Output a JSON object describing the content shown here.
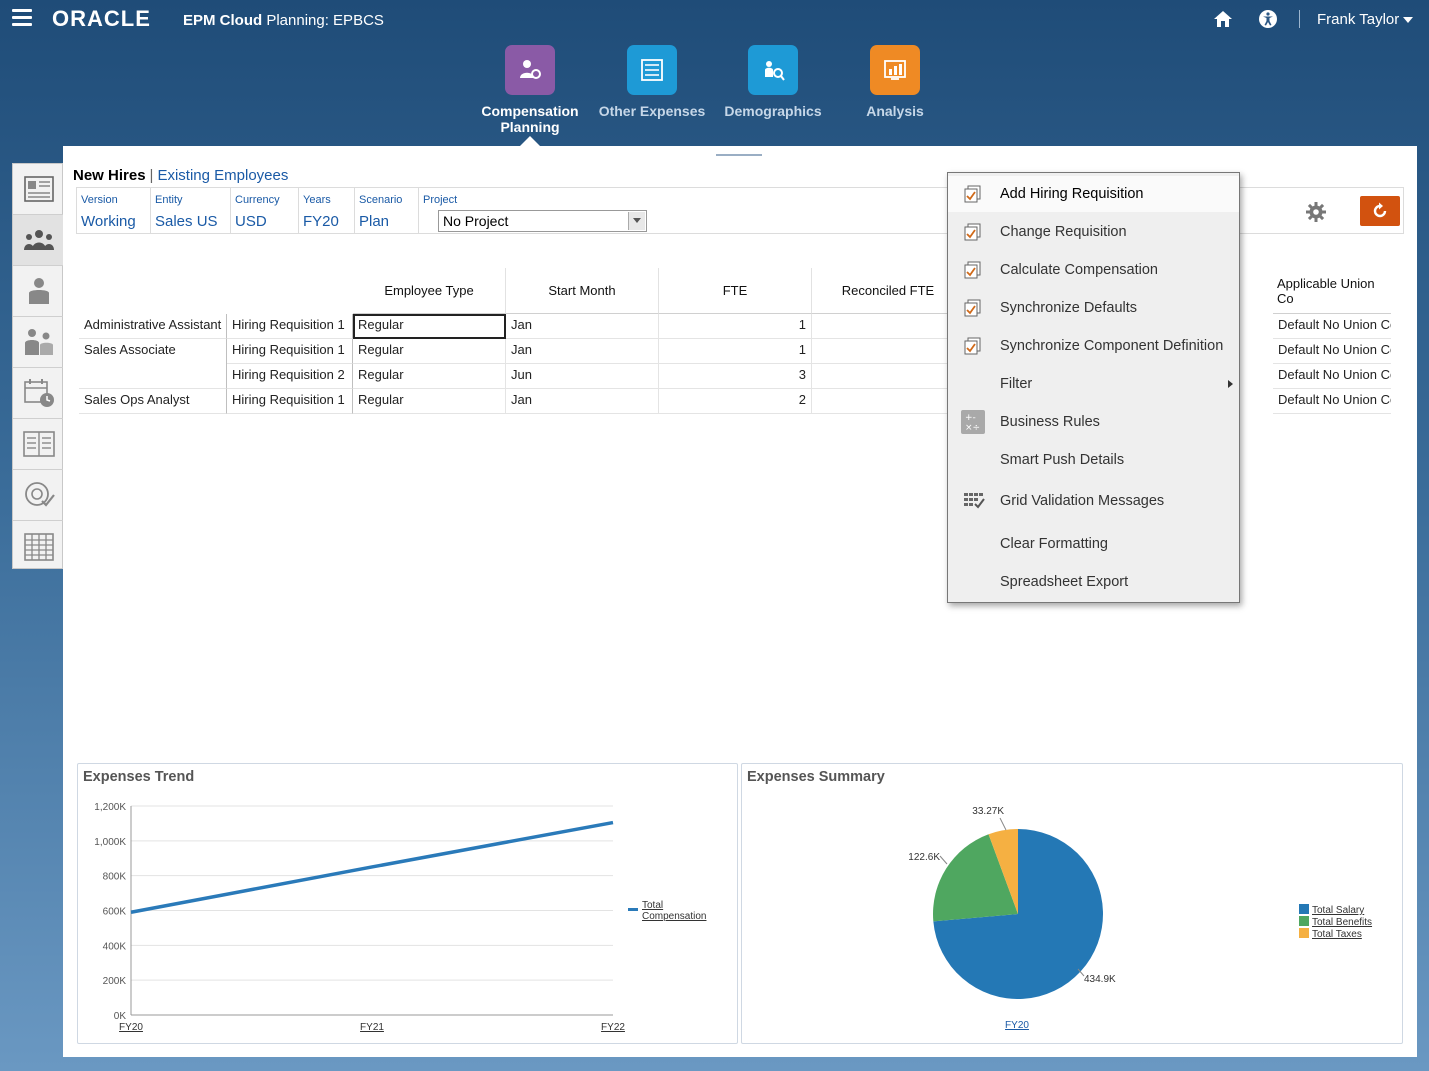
{
  "topbar": {
    "logo": "ORACLE",
    "app_bold": "EPM Cloud",
    "app_rest": " Planning: EPBCS",
    "user": "Frank Taylor"
  },
  "nav": {
    "tiles": [
      {
        "label": "Compensation Planning",
        "color": "#8a5aa6",
        "icon": "compensation-icon"
      },
      {
        "label": "Other Expenses",
        "color": "#1e9ad6",
        "icon": "list-icon"
      },
      {
        "label": "Demographics",
        "color": "#1e9ad6",
        "icon": "demographics-icon"
      },
      {
        "label": "Analysis",
        "color": "#ef8a24",
        "icon": "analysis-icon"
      }
    ]
  },
  "sidebar": {
    "items": [
      "overview-icon",
      "employees-icon",
      "person-icon",
      "transfer-icon",
      "calendar-clock-icon",
      "table-icon",
      "review-icon",
      "grid-icon"
    ]
  },
  "subtabs": {
    "active": "New Hires",
    "other": "Existing Employees"
  },
  "pov": {
    "version_label": "Version",
    "version": "Working",
    "entity_label": "Entity",
    "entity": "Sales US",
    "currency_label": "Currency",
    "currency": "USD",
    "years_label": "Years",
    "years": "FY20",
    "scenario_label": "Scenario",
    "scenario": "Plan",
    "project_label": "Project",
    "project": "No Project"
  },
  "grid": {
    "headers": [
      "Employee Type",
      "Start Month",
      "FTE",
      "Reconciled FTE",
      "Applicable Union Co"
    ],
    "rows": [
      {
        "job": "Administrative Assistant",
        "req": "Hiring Requisition 1",
        "type": "Regular",
        "month": "Jan",
        "fte": "1",
        "union": "Default No Union Co"
      },
      {
        "job": "Sales Associate",
        "req": "Hiring Requisition 1",
        "type": "Regular",
        "month": "Jan",
        "fte": "1",
        "union": "Default No Union Co"
      },
      {
        "job": "",
        "req": "Hiring Requisition 2",
        "type": "Regular",
        "month": "Jun",
        "fte": "3",
        "union": "Default No Union Co"
      },
      {
        "job": "Sales Ops Analyst",
        "req": "Hiring Requisition 1",
        "type": "Regular",
        "month": "Jan",
        "fte": "2",
        "union": "Default No Union Co"
      }
    ]
  },
  "menu": {
    "items": [
      {
        "label": "Add Hiring Requisition",
        "icon": "form-action-icon"
      },
      {
        "label": "Change Requisition",
        "icon": "form-action-icon"
      },
      {
        "label": "Calculate Compensation",
        "icon": "form-action-icon"
      },
      {
        "label": "Synchronize Defaults",
        "icon": "form-action-icon"
      },
      {
        "label": "Synchronize Component Definition",
        "icon": "form-action-icon"
      },
      {
        "label": "Filter",
        "icon": ""
      },
      {
        "label": "Business Rules",
        "icon": "calculator-icon"
      },
      {
        "label": "Smart Push Details",
        "icon": ""
      },
      {
        "label": "Grid Validation Messages",
        "icon": "grid-validation-icon"
      },
      {
        "label": "Clear Formatting",
        "icon": ""
      },
      {
        "label": "Spreadsheet Export",
        "icon": ""
      }
    ]
  },
  "charts": {
    "trend_title": "Expenses Trend",
    "summary_title": "Expenses Summary"
  },
  "chart_data": [
    {
      "type": "line",
      "title": "Expenses Trend",
      "x": [
        "FY20",
        "FY21",
        "FY22"
      ],
      "series": [
        {
          "name": "Total Compensation",
          "values": [
            590000,
            850000,
            1105000
          ],
          "color": "#2a7ab9"
        }
      ],
      "ylim": [
        0,
        1200000
      ],
      "yticks": [
        "0K",
        "200K",
        "400K",
        "600K",
        "800K",
        "1,000K",
        "1,200K"
      ],
      "grid": true,
      "legend": "right"
    },
    {
      "type": "pie",
      "title": "Expenses Summary",
      "category": "FY20",
      "slices": [
        {
          "name": "Total Salary",
          "value": 434.9,
          "label": "434.9K",
          "color": "#2478b5"
        },
        {
          "name": "Total Benefits",
          "value": 122.6,
          "label": "122.6K",
          "color": "#4fa760"
        },
        {
          "name": "Total Taxes",
          "value": 33.27,
          "label": "33.27K",
          "color": "#f5b042"
        }
      ],
      "legend": "right"
    }
  ]
}
